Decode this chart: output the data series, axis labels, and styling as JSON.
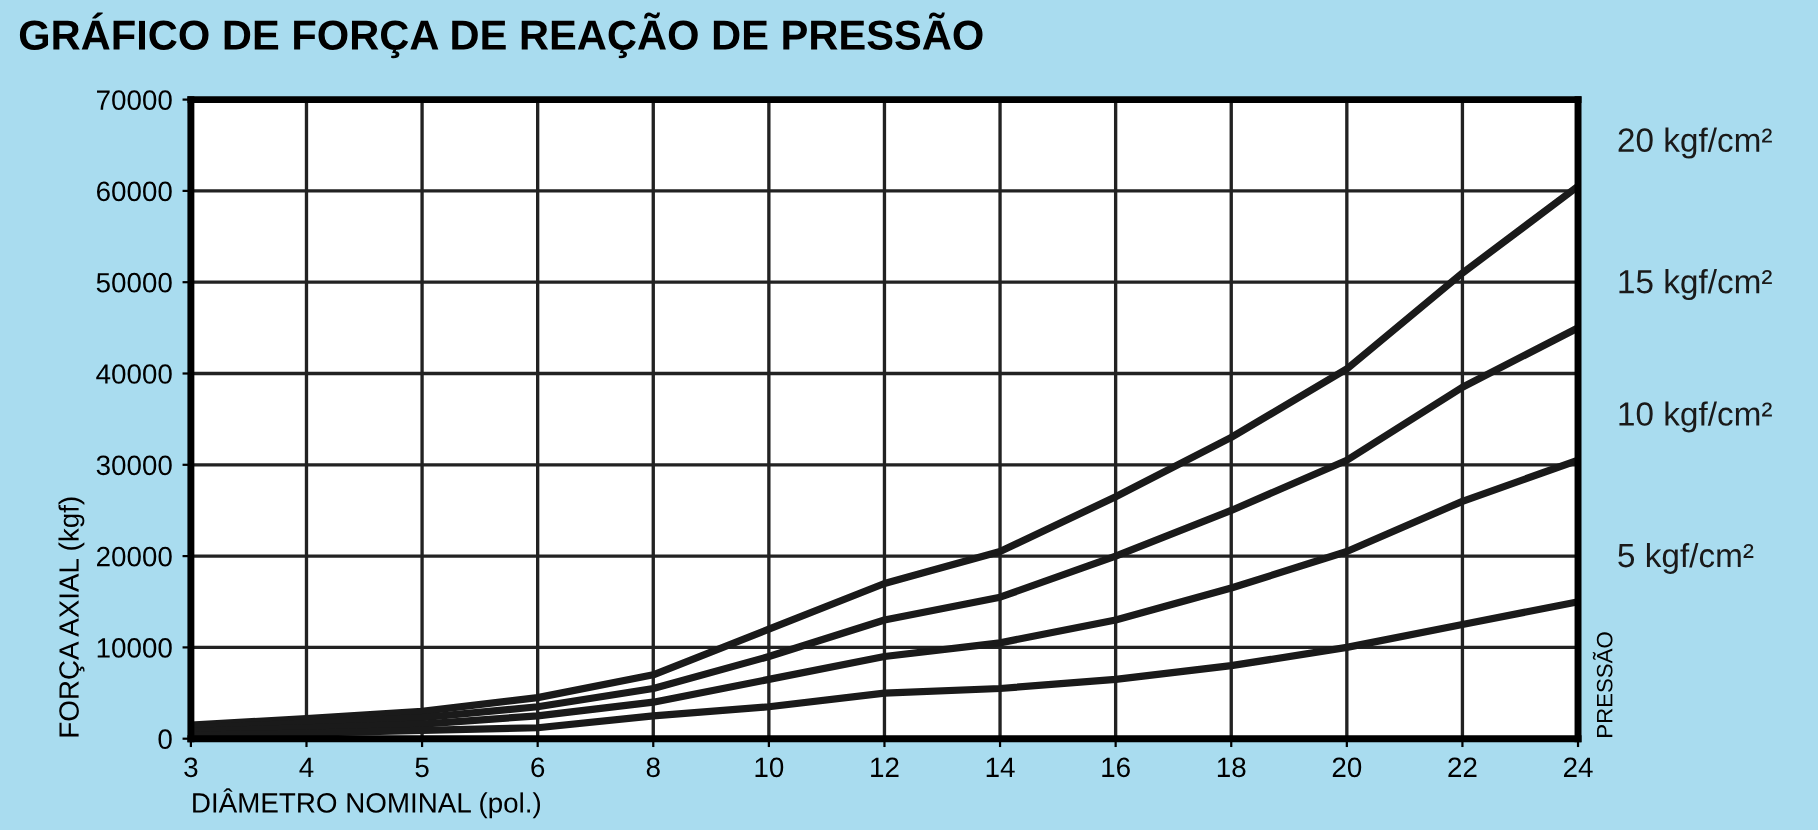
{
  "chart_data": {
    "type": "line",
    "title": "GRÁFICO DE FORÇA DE REAÇÃO DE PRESSÃO",
    "xlabel": "DIÂMETRO NOMINAL (pol.)",
    "ylabel": "FORÇA AXIAL (kgf)",
    "annotations": [
      "PRESSÃO"
    ],
    "categories": [
      "3",
      "4",
      "5",
      "6",
      "8",
      "10",
      "12",
      "14",
      "16",
      "18",
      "20",
      "22",
      "24"
    ],
    "ylim": [
      0,
      70000
    ],
    "yticks": [
      0,
      10000,
      20000,
      30000,
      40000,
      50000,
      60000,
      70000
    ],
    "grid": true,
    "legend": false,
    "marker": "none",
    "line_style": "solid",
    "series": [
      {
        "name": "20 kgf/cm²",
        "color": "#1a1a1a",
        "values": [
          1500,
          2200,
          3000,
          4500,
          7000,
          12000,
          17000,
          20500,
          26500,
          33000,
          40500,
          51000,
          60500
        ]
      },
      {
        "name": "15 kgf/cm²",
        "color": "#1a1a1a",
        "values": [
          1200,
          1700,
          2300,
          3500,
          5500,
          9000,
          13000,
          15500,
          20000,
          25000,
          30500,
          38500,
          45000
        ]
      },
      {
        "name": "10 kgf/cm²",
        "color": "#1a1a1a",
        "values": [
          800,
          1200,
          1600,
          2500,
          4000,
          6500,
          9000,
          10500,
          13000,
          16500,
          20500,
          26000,
          30500
        ]
      },
      {
        "name": "5 kgf/cm²",
        "color": "#1a1a1a",
        "values": [
          400,
          600,
          900,
          1200,
          2500,
          3500,
          5000,
          5500,
          6500,
          8000,
          10000,
          12500,
          15000
        ]
      }
    ]
  }
}
